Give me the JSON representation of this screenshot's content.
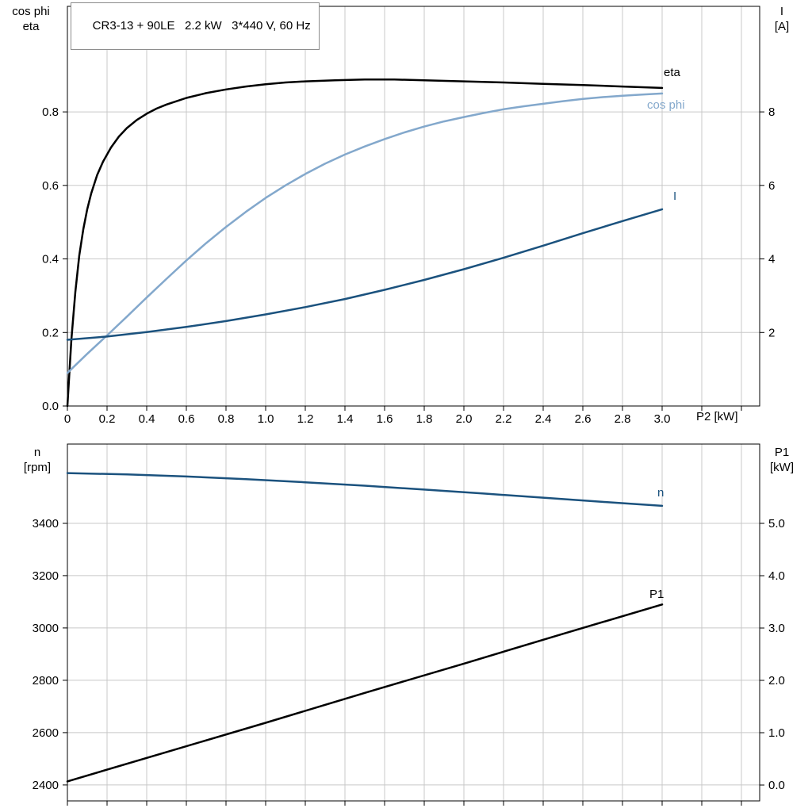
{
  "header": {
    "title": "CR3-13 + 90LE   2.2 kW   3*440 V, 60 Hz"
  },
  "colors": {
    "background": "#ffffff",
    "frame": "#000000",
    "grid": "#c8c8c8",
    "black_curve": "#000000",
    "dark_blue_curve": "#1b527e",
    "light_blue_curve": "#83a8cc",
    "title_border": "#8c8c8c"
  },
  "chart_data": [
    {
      "type": "line",
      "title": "CR3-13 + 90LE   2.2 kW   3*440 V, 60 Hz",
      "x_label": "P2 [kW]",
      "x_range": [
        0,
        3.492
      ],
      "x_tick_values": [
        0,
        0.2,
        0.4,
        0.6,
        0.8,
        1.0,
        1.2,
        1.4,
        1.6,
        1.8,
        2.0,
        2.2,
        2.4,
        2.6,
        2.8,
        3.0
      ],
      "x_tick_labels": [
        "0",
        "0.2",
        "0.4",
        "0.6",
        "0.8",
        "1.0",
        "1.2",
        "1.4",
        "1.6",
        "1.8",
        "2.0",
        "2.2",
        "2.4",
        "2.6",
        "2.8",
        "3.0"
      ],
      "x_grid_values": [
        0.2,
        0.4,
        0.6,
        0.8,
        1.0,
        1.2,
        1.4,
        1.6,
        1.8,
        2.0,
        2.2,
        2.4,
        2.6,
        2.8,
        3.0,
        3.2,
        3.4
      ],
      "left_axis": {
        "title_lines": [
          "cos phi",
          "eta"
        ],
        "range": [
          0,
          1.087
        ],
        "tick_values": [
          0,
          0.2,
          0.4,
          0.6,
          0.8
        ],
        "tick_labels": [
          "0.0",
          "0.2",
          "0.4",
          "0.6",
          "0.8"
        ],
        "grid_values": [
          0.2,
          0.4,
          0.6,
          0.8
        ]
      },
      "right_axis": {
        "title_lines": [
          "I",
          "[A]"
        ],
        "range": [
          0,
          10.87
        ],
        "tick_values": [
          2,
          4,
          6,
          8
        ],
        "tick_labels": [
          "2",
          "4",
          "6",
          "8"
        ]
      },
      "grid": true,
      "legend_position": "inline-labels",
      "series": [
        {
          "name": "eta",
          "axis": "left",
          "color": "#000000",
          "width": 2.5,
          "label": {
            "text": "eta",
            "x": 837,
            "y": 96
          },
          "points": [
            [
              0,
              0
            ],
            [
              0.02,
              0.18
            ],
            [
              0.04,
              0.31
            ],
            [
              0.06,
              0.41
            ],
            [
              0.08,
              0.48
            ],
            [
              0.1,
              0.535
            ],
            [
              0.12,
              0.578
            ],
            [
              0.15,
              0.628
            ],
            [
              0.18,
              0.665
            ],
            [
              0.22,
              0.703
            ],
            [
              0.26,
              0.733
            ],
            [
              0.3,
              0.756
            ],
            [
              0.35,
              0.778
            ],
            [
              0.4,
              0.795
            ],
            [
              0.45,
              0.809
            ],
            [
              0.5,
              0.82
            ],
            [
              0.6,
              0.838
            ],
            [
              0.7,
              0.851
            ],
            [
              0.8,
              0.861
            ],
            [
              0.9,
              0.869
            ],
            [
              1.0,
              0.875
            ],
            [
              1.1,
              0.88
            ],
            [
              1.2,
              0.883
            ],
            [
              1.35,
              0.886
            ],
            [
              1.5,
              0.888
            ],
            [
              1.65,
              0.888
            ],
            [
              1.8,
              0.886
            ],
            [
              2.0,
              0.883
            ],
            [
              2.2,
              0.88
            ],
            [
              2.4,
              0.876
            ],
            [
              2.6,
              0.873
            ],
            [
              2.8,
              0.869
            ],
            [
              3.0,
              0.865
            ]
          ]
        },
        {
          "name": "cos phi",
          "axis": "left",
          "color": "#83a8cc",
          "width": 2.5,
          "label": {
            "text": "cos phi",
            "x": 816,
            "y": 137
          },
          "points": [
            [
              0,
              0.09
            ],
            [
              0.1,
              0.142
            ],
            [
              0.2,
              0.192
            ],
            [
              0.3,
              0.243
            ],
            [
              0.4,
              0.295
            ],
            [
              0.5,
              0.346
            ],
            [
              0.6,
              0.396
            ],
            [
              0.7,
              0.443
            ],
            [
              0.8,
              0.487
            ],
            [
              0.9,
              0.528
            ],
            [
              1.0,
              0.566
            ],
            [
              1.1,
              0.6
            ],
            [
              1.2,
              0.631
            ],
            [
              1.3,
              0.659
            ],
            [
              1.4,
              0.684
            ],
            [
              1.5,
              0.706
            ],
            [
              1.6,
              0.726
            ],
            [
              1.7,
              0.744
            ],
            [
              1.8,
              0.76
            ],
            [
              1.9,
              0.774
            ],
            [
              2.0,
              0.786
            ],
            [
              2.1,
              0.797
            ],
            [
              2.2,
              0.807
            ],
            [
              2.3,
              0.815
            ],
            [
              2.4,
              0.822
            ],
            [
              2.5,
              0.829
            ],
            [
              2.6,
              0.835
            ],
            [
              2.7,
              0.84
            ],
            [
              2.8,
              0.844
            ],
            [
              2.9,
              0.847
            ],
            [
              3.0,
              0.85
            ]
          ]
        },
        {
          "name": "I",
          "axis": "right",
          "color": "#1b527e",
          "width": 2.5,
          "label": {
            "text": "I",
            "x": 849,
            "y": 252
          },
          "points": [
            [
              0,
              1.8
            ],
            [
              0.2,
              1.89
            ],
            [
              0.4,
              2.01
            ],
            [
              0.6,
              2.15
            ],
            [
              0.8,
              2.31
            ],
            [
              1.0,
              2.49
            ],
            [
              1.2,
              2.69
            ],
            [
              1.4,
              2.91
            ],
            [
              1.6,
              3.16
            ],
            [
              1.8,
              3.43
            ],
            [
              2.0,
              3.72
            ],
            [
              2.2,
              4.03
            ],
            [
              2.4,
              4.36
            ],
            [
              2.6,
              4.7
            ],
            [
              2.8,
              5.03
            ],
            [
              3.0,
              5.35
            ]
          ]
        }
      ]
    },
    {
      "type": "line",
      "title": "",
      "x_label": "",
      "x_range": [
        0,
        3.492
      ],
      "x_tick_values": [],
      "x_tick_labels": [],
      "x_grid_values": [
        0.2,
        0.4,
        0.6,
        0.8,
        1.0,
        1.2,
        1.4,
        1.6,
        1.8,
        2.0,
        2.2,
        2.4,
        2.6,
        2.8,
        3.0,
        3.2,
        3.4
      ],
      "left_axis": {
        "title_lines": [
          "n",
          "[rpm]"
        ],
        "range": [
          2339,
          3703
        ],
        "tick_values": [
          2400,
          2600,
          2800,
          3000,
          3200,
          3400
        ],
        "tick_labels": [
          "2400",
          "2600",
          "2800",
          "3000",
          "3200",
          "3400"
        ],
        "grid_values": [
          2400,
          2600,
          2800,
          3000,
          3200,
          3400
        ]
      },
      "right_axis": {
        "title_lines": [
          "P1",
          "[kW]"
        ],
        "range": [
          -0.303,
          6.515
        ],
        "tick_values": [
          0,
          1,
          2,
          3,
          4,
          5
        ],
        "tick_labels": [
          "0.0",
          "1.0",
          "2.0",
          "3.0",
          "4.0",
          "5.0"
        ]
      },
      "grid": true,
      "legend_position": "inline-labels",
      "series": [
        {
          "name": "n",
          "axis": "left",
          "color": "#1b527e",
          "width": 2.5,
          "label": {
            "text": "n",
            "x": 829,
            "y": 626
          },
          "points": [
            [
              0,
              3592
            ],
            [
              0.3,
              3587
            ],
            [
              0.6,
              3579
            ],
            [
              0.9,
              3569
            ],
            [
              1.2,
              3557
            ],
            [
              1.5,
              3544
            ],
            [
              1.8,
              3529
            ],
            [
              2.1,
              3514
            ],
            [
              2.4,
              3498
            ],
            [
              2.7,
              3482
            ],
            [
              3.0,
              3467
            ]
          ]
        },
        {
          "name": "P1",
          "axis": "right",
          "color": "#000000",
          "width": 2.5,
          "label": {
            "text": "P1",
            "x": 819,
            "y": 754
          },
          "points": [
            [
              0,
              0.07
            ],
            [
              0.5,
              0.63
            ],
            [
              1.0,
              1.19
            ],
            [
              1.5,
              1.76
            ],
            [
              2.0,
              2.32
            ],
            [
              2.5,
              2.89
            ],
            [
              3.0,
              3.45
            ]
          ]
        }
      ]
    }
  ]
}
